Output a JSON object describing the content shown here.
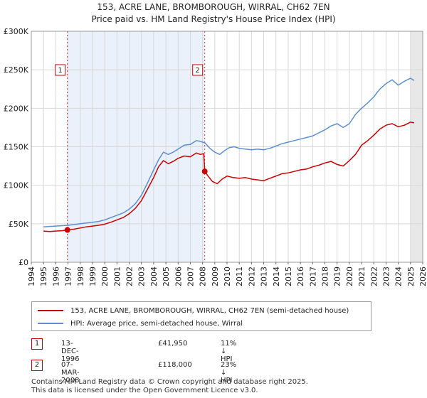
{
  "chart_data": {
    "type": "line",
    "title": "153, ACRE LANE, BROMBOROUGH, WIRRAL, CH62 7EN",
    "subtitle": "Price paid vs. HM Land Registry's House Price Index (HPI)",
    "xlim": [
      1994,
      2026
    ],
    "ylim": [
      0,
      300000
    ],
    "x_ticks": [
      "1994",
      "1995",
      "1996",
      "1997",
      "1998",
      "1999",
      "2000",
      "2001",
      "2002",
      "2003",
      "2004",
      "2005",
      "2006",
      "2007",
      "2008",
      "2009",
      "2010",
      "2011",
      "2012",
      "2013",
      "2014",
      "2015",
      "2016",
      "2017",
      "2018",
      "2019",
      "2020",
      "2021",
      "2022",
      "2023",
      "2024",
      "2025",
      "2026"
    ],
    "y_ticks": [
      {
        "value": 0,
        "label": "£0"
      },
      {
        "value": 50000,
        "label": "£50K"
      },
      {
        "value": 100000,
        "label": "£100K"
      },
      {
        "value": 150000,
        "label": "£150K"
      },
      {
        "value": 200000,
        "label": "£200K"
      },
      {
        "value": 250000,
        "label": "£250K"
      },
      {
        "value": 300000,
        "label": "£300K"
      }
    ],
    "grid": true,
    "series": [
      {
        "name": "153, ACRE LANE, BROMBOROUGH, WIRRAL, CH62 7EN (semi-detached house)",
        "color": "#cc0000",
        "x": [
          1995.0,
          1995.5,
          1996.0,
          1996.5,
          1996.95,
          1997.5,
          1998.0,
          1998.5,
          1999.0,
          1999.5,
          2000.0,
          2000.5,
          2001.0,
          2001.5,
          2002.0,
          2002.5,
          2003.0,
          2003.5,
          2004.0,
          2004.4,
          2004.8,
          2005.2,
          2005.6,
          2006.0,
          2006.5,
          2007.0,
          2007.5,
          2007.8,
          2008.1,
          2008.18,
          2008.4,
          2008.8,
          2009.2,
          2009.6,
          2010.0,
          2010.5,
          2011.0,
          2011.5,
          2012.0,
          2012.5,
          2013.0,
          2013.5,
          2014.0,
          2014.5,
          2015.0,
          2015.5,
          2016.0,
          2016.5,
          2017.0,
          2017.5,
          2018.0,
          2018.5,
          2019.0,
          2019.5,
          2020.0,
          2020.5,
          2021.0,
          2021.5,
          2022.0,
          2022.5,
          2023.0,
          2023.5,
          2024.0,
          2024.5,
          2025.0,
          2025.3
        ],
        "y": [
          40500,
          40000,
          40500,
          41000,
          41950,
          43000,
          44500,
          46000,
          47000,
          48000,
          49500,
          52000,
          55000,
          58000,
          63000,
          70000,
          80000,
          95000,
          110000,
          124000,
          132000,
          128000,
          131000,
          135000,
          138000,
          137000,
          142000,
          140000,
          141000,
          118000,
          113000,
          105000,
          102000,
          108000,
          112000,
          110000,
          109000,
          110000,
          108000,
          107000,
          106000,
          109000,
          112000,
          115000,
          116000,
          118000,
          120000,
          121000,
          124000,
          126000,
          129000,
          131000,
          127000,
          125000,
          132000,
          140000,
          152000,
          158000,
          165000,
          173000,
          178000,
          180000,
          176000,
          178000,
          182000,
          181000
        ]
      },
      {
        "name": "HPI: Average price, semi-detached house, Wirral",
        "color": "#5b8fd1",
        "x": [
          1995.0,
          1995.5,
          1996.0,
          1996.5,
          1997.0,
          1997.5,
          1998.0,
          1998.5,
          1999.0,
          1999.5,
          2000.0,
          2000.5,
          2001.0,
          2001.5,
          2002.0,
          2002.5,
          2003.0,
          2003.5,
          2004.0,
          2004.4,
          2004.8,
          2005.2,
          2005.6,
          2006.0,
          2006.5,
          2007.0,
          2007.5,
          2007.8,
          2008.2,
          2008.6,
          2009.0,
          2009.4,
          2009.8,
          2010.2,
          2010.6,
          2011.0,
          2011.5,
          2012.0,
          2012.5,
          2013.0,
          2013.5,
          2014.0,
          2014.5,
          2015.0,
          2015.5,
          2016.0,
          2016.5,
          2017.0,
          2017.5,
          2018.0,
          2018.5,
          2019.0,
          2019.5,
          2020.0,
          2020.5,
          2021.0,
          2021.5,
          2022.0,
          2022.5,
          2023.0,
          2023.5,
          2024.0,
          2024.5,
          2025.0,
          2025.3
        ],
        "y": [
          46000,
          46500,
          47000,
          47500,
          48000,
          49000,
          50000,
          51000,
          52000,
          53000,
          55000,
          58000,
          61000,
          64000,
          69000,
          76000,
          87000,
          103000,
          120000,
          133000,
          143000,
          140000,
          143000,
          147000,
          152000,
          153000,
          158000,
          157000,
          155000,
          148000,
          143000,
          140000,
          145000,
          149000,
          150000,
          148000,
          147000,
          146000,
          147000,
          146000,
          148000,
          151000,
          154000,
          156000,
          158000,
          160000,
          162000,
          164000,
          168000,
          172000,
          177000,
          180000,
          175000,
          180000,
          192000,
          200000,
          207000,
          215000,
          225000,
          232000,
          237000,
          230000,
          235000,
          239000,
          236000
        ]
      }
    ],
    "shaded_ranges": [
      [
        1996.95,
        2008.18
      ],
      [
        2025.0,
        2026.0
      ]
    ],
    "sales": [
      {
        "id": "1",
        "x": 1996.95,
        "y": 41950
      },
      {
        "id": "2",
        "x": 2008.18,
        "y": 118000
      }
    ]
  },
  "legend": {
    "property_label": "153, ACRE LANE, BROMBOROUGH, WIRRAL, CH62 7EN (semi-detached house)",
    "hpi_label": "HPI: Average price, semi-detached house, Wirral"
  },
  "transactions": [
    {
      "num": "1",
      "date": "13-DEC-1996",
      "price": "£41,950",
      "hpi": "11% ↓ HPI"
    },
    {
      "num": "2",
      "date": "07-MAR-2008",
      "price": "£118,000",
      "hpi": "23% ↓ HPI"
    }
  ],
  "footer": {
    "line1": "Contains HM Land Registry data © Crown copyright and database right 2025.",
    "line2": "This data is licensed under the Open Government Licence v3.0."
  }
}
